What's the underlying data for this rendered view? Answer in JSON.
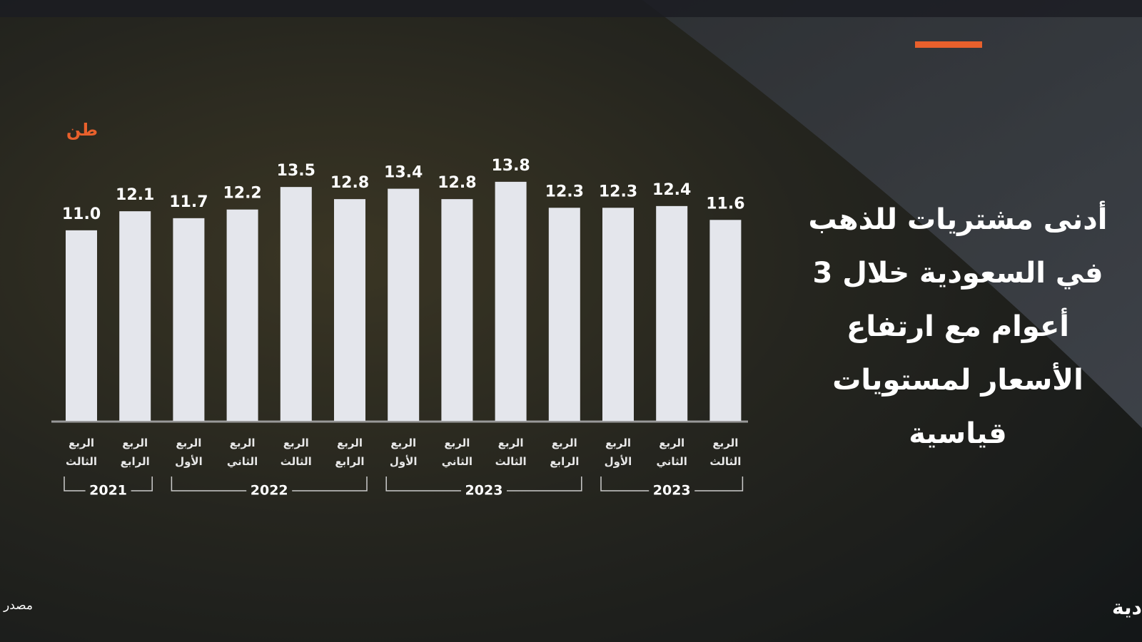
{
  "chart_data": {
    "type": "bar",
    "title_lines": [
      "أدنى مشتريات للذهب",
      "في السعودية خلال 3",
      "أعوام مع ارتفاع",
      "الأسعار لمستويات",
      "قياسية"
    ],
    "unit": "طن",
    "color": "#e4e6ec",
    "ylim": [
      0,
      14
    ],
    "groups": [
      {
        "label": "2021",
        "categories": [
          "الربع الثالث",
          "الربع الرابع"
        ],
        "values": [
          11.0,
          12.1
        ],
        "value_labels": [
          "11.0",
          "12.1"
        ]
      },
      {
        "label": "2022",
        "categories": [
          "الربع الأول",
          "الربع الثاني",
          "الربع الثالث",
          "الربع الرابع"
        ],
        "values": [
          11.7,
          12.2,
          13.5,
          12.8
        ]
      },
      {
        "label": "2023",
        "categories": [
          "الربع الأول",
          "الربع الثاني",
          "الربع الثالث",
          "الربع الرابع"
        ],
        "values": [
          13.4,
          12.8,
          13.8,
          12.3
        ]
      },
      {
        "label": "2023",
        "categories": [
          "الربع الأول",
          "الربع الثاني",
          "الربع الثالث"
        ],
        "values": [
          12.3,
          12.4,
          11.6
        ]
      }
    ],
    "source": "مصدر البيانات: مجلس الذهب العالمي",
    "brand": "الاقتصادية"
  }
}
